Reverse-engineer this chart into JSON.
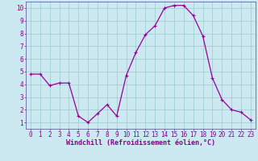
{
  "x": [
    0,
    1,
    2,
    3,
    4,
    5,
    6,
    7,
    8,
    9,
    10,
    11,
    12,
    13,
    14,
    15,
    16,
    17,
    18,
    19,
    20,
    21,
    22,
    23
  ],
  "y": [
    4.8,
    4.8,
    3.9,
    4.1,
    4.1,
    1.5,
    1.0,
    1.7,
    2.4,
    1.5,
    4.7,
    6.5,
    7.9,
    8.6,
    10.0,
    10.2,
    10.2,
    9.4,
    7.8,
    4.5,
    2.8,
    2.0,
    1.8,
    1.2
  ],
  "line_color": "#990099",
  "marker": "+",
  "marker_size": 3,
  "marker_lw": 0.8,
  "line_width": 0.9,
  "bg_color": "#cce8f0",
  "grid_color": "#99cccc",
  "xlabel": "Windchill (Refroidissement éolien,°C)",
  "xlabel_color": "#880088",
  "xlabel_fontsize": 6.0,
  "tick_color": "#880088",
  "tick_fontsize": 5.5,
  "ylim": [
    0.5,
    10.5
  ],
  "xlim": [
    -0.5,
    23.5
  ],
  "yticks": [
    1,
    2,
    3,
    4,
    5,
    6,
    7,
    8,
    9,
    10
  ],
  "xticks": [
    0,
    1,
    2,
    3,
    4,
    5,
    6,
    7,
    8,
    9,
    10,
    11,
    12,
    13,
    14,
    15,
    16,
    17,
    18,
    19,
    20,
    21,
    22,
    23
  ],
  "spine_color": "#880088",
  "axis_border_color": "#666699"
}
